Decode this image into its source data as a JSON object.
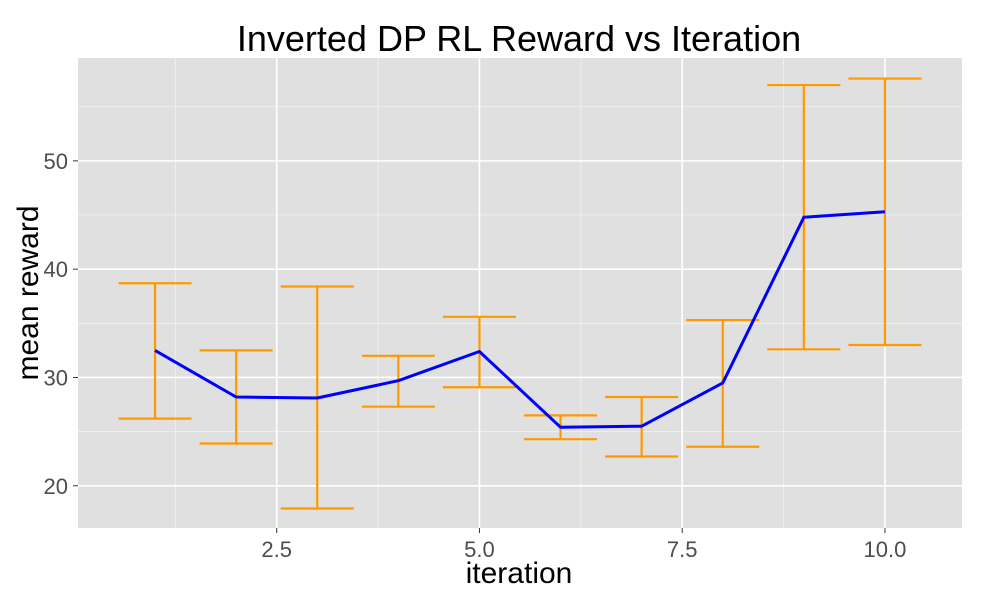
{
  "chart_data": {
    "type": "line",
    "title": "Inverted DP RL Reward vs Iteration",
    "xlabel": "iteration",
    "ylabel": "mean reward",
    "xlim": [
      0.05,
      10.95
    ],
    "ylim": [
      16.1,
      59.5
    ],
    "x_ticks": [
      2.5,
      5.0,
      7.5,
      10.0
    ],
    "x_tick_labels": [
      "2.5",
      "5.0",
      "7.5",
      "10.0"
    ],
    "y_ticks": [
      20,
      30,
      40,
      50
    ],
    "y_tick_labels": [
      "20",
      "30",
      "40",
      "50"
    ],
    "grid": true,
    "background": "#e0e0e0",
    "line_color": "#0000ff",
    "errorbar_color": "#ff9900",
    "series": [
      {
        "x": [
          1,
          2,
          3,
          4,
          5,
          6,
          7,
          8,
          9,
          10
        ],
        "y": [
          32.5,
          28.2,
          28.1,
          29.7,
          32.4,
          25.4,
          25.5,
          29.5,
          44.8,
          45.3
        ],
        "lower": [
          26.2,
          23.9,
          17.9,
          27.3,
          29.1,
          24.3,
          22.7,
          23.6,
          32.6,
          33.0
        ],
        "upper": [
          38.7,
          32.5,
          38.4,
          32.0,
          35.6,
          26.5,
          28.2,
          35.3,
          57.0,
          57.6
        ]
      }
    ]
  }
}
